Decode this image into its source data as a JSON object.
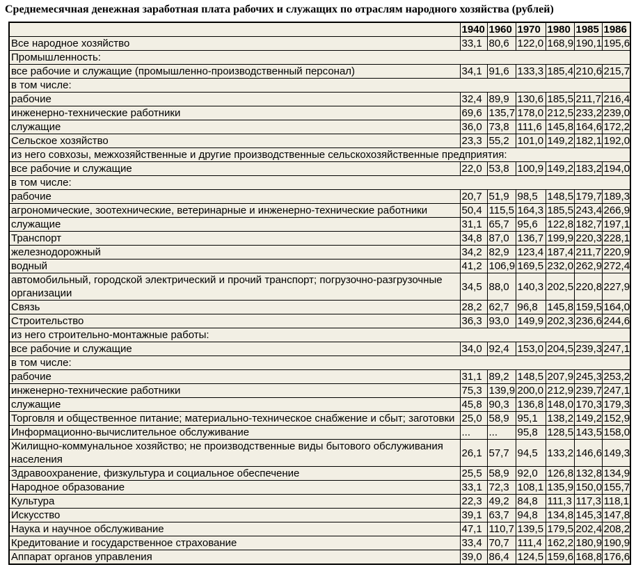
{
  "title": "Среднемесячная денежная заработная плата рабочих и служащих по отраслям народного хозяйства (рублей)",
  "colors": {
    "table_background": "#f2efe4",
    "border": "#000000",
    "text": "#000000",
    "page_background": "#ffffff"
  },
  "table": {
    "corner_label": "",
    "columns": [
      "1940",
      "1960",
      "1970",
      "1980",
      "1985",
      "1986"
    ],
    "rows": [
      {
        "label": "Все народное хозяйство",
        "values": [
          "33,1",
          "80,6",
          "122,0",
          "168,9",
          "190,1",
          "195,6"
        ]
      },
      {
        "label": "Промышленность:",
        "section": true
      },
      {
        "label": "все рабочие и служащие (промышленно-производственный персонал)",
        "values": [
          "34,1",
          "91,6",
          "133,3",
          "185,4",
          "210,6",
          "215,7"
        ]
      },
      {
        "label": "в том числе:",
        "section": true
      },
      {
        "label": "рабочие",
        "values": [
          "32,4",
          "89,9",
          "130,6",
          "185,5",
          "211,7",
          "216,4"
        ]
      },
      {
        "label": "инженерно-технические работники",
        "values": [
          "69,6",
          "135,7",
          "178,0",
          "212,5",
          "233,2",
          "239,0"
        ]
      },
      {
        "label": "служащие",
        "values": [
          "36,0",
          "73,8",
          "111,6",
          "145,8",
          "164,6",
          "172,2"
        ]
      },
      {
        "label": "Сельское хозяйство",
        "values": [
          "23,3",
          "55,2",
          "101,0",
          "149,2",
          "182,1",
          "192,0"
        ]
      },
      {
        "label": "из него совхозы, межхозяйственные и другие производственные сельскохозяйственные предприятия:",
        "section": true
      },
      {
        "label": "все рабочие и служащие",
        "values": [
          "22,0",
          "53,8",
          "100,9",
          "149,2",
          "183,2",
          "194,0"
        ]
      },
      {
        "label": "в том числе:",
        "section": true
      },
      {
        "label": "рабочие",
        "values": [
          "20,7",
          "51,9",
          "98,5",
          "148,5",
          "179,7",
          "189,3"
        ]
      },
      {
        "label": "агрономические, зоотехнические, ветеринарные и инженерно-технические работники",
        "values": [
          "50,4",
          "115,5",
          "164,3",
          "185,5",
          "243,4",
          "266,9"
        ]
      },
      {
        "label": "служащие",
        "values": [
          "31,1",
          "65,7",
          "95,6",
          "122,8",
          "182,7",
          "197,1"
        ]
      },
      {
        "label": "Транспорт",
        "values": [
          "34,8",
          "87,0",
          "136,7",
          "199,9",
          "220,3",
          "228,1"
        ]
      },
      {
        "label": "железнодорожный",
        "values": [
          "34,2",
          "82,9",
          "123,4",
          "187,4",
          "211,7",
          "220,9"
        ]
      },
      {
        "label": "водный",
        "values": [
          "41,2",
          "106,9",
          "169,5",
          "232,0",
          "262,9",
          "272,4"
        ]
      },
      {
        "label": "автомобильный, городской электрический и прочий транспорт; погрузочно-разгрузочные организации",
        "values": [
          "34,5",
          "88,0",
          "140,3",
          "202,5",
          "220,8",
          "227,9"
        ]
      },
      {
        "label": "Связь",
        "values": [
          "28,2",
          "62,7",
          "96,8",
          "145,8",
          "159,5",
          "164,0"
        ]
      },
      {
        "label": "Строительство",
        "values": [
          "36,3",
          "93,0",
          "149,9",
          "202,3",
          "236,6",
          "244,6"
        ]
      },
      {
        "label": "из него строительно-монтажные работы:",
        "section": true
      },
      {
        "label": "все рабочие и служащие",
        "values": [
          "34,0",
          "92,4",
          "153,0",
          "204,5",
          "239,3",
          "247,1"
        ]
      },
      {
        "label": "в том числе:",
        "section": true
      },
      {
        "label": "рабочие",
        "values": [
          "31,1",
          "89,2",
          "148,5",
          "207,9",
          "245,3",
          "253,2"
        ]
      },
      {
        "label": "инженерно-технические работники",
        "values": [
          "75,3",
          "139,9",
          "200,0",
          "212,9",
          "239,7",
          "247,1"
        ]
      },
      {
        "label": "служащие",
        "values": [
          "45,8",
          "90,3",
          "136,8",
          "148,0",
          "170,3",
          "179,3"
        ]
      },
      {
        "label": "Торговля и общественное питание; материально-техническое снабжение и сбыт; заготовки",
        "values": [
          "25,0",
          "58,9",
          "95,1",
          "138,2",
          "149,2",
          "152,9"
        ]
      },
      {
        "label": "Информационно-вычислительное обслуживание",
        "values": [
          "...",
          "...",
          "95,8",
          "128,5",
          "143,5",
          "158,0"
        ]
      },
      {
        "label": "Жилищно-коммунальное хозяйство; не производственные виды бытового обслуживания населения",
        "values": [
          "26,1",
          "57,7",
          "94,5",
          "133,2",
          "146,6",
          "149,3"
        ]
      },
      {
        "label": "Здравоохранение, физкультура и социальное обеспечение",
        "values": [
          "25,5",
          "58,9",
          "92,0",
          "126,8",
          "132,8",
          "134,9"
        ]
      },
      {
        "label": "Народное образование",
        "values": [
          "33,1",
          "72,3",
          "108,1",
          "135,9",
          "150,0",
          "155,7"
        ]
      },
      {
        "label": "Культура",
        "values": [
          "22,3",
          "49,2",
          "84,8",
          "111,3",
          "117,3",
          "118,1"
        ]
      },
      {
        "label": "Искусство",
        "values": [
          "39,1",
          "63,7",
          "94,8",
          "134,8",
          "145,3",
          "147,8"
        ]
      },
      {
        "label": "Наука и научное обслуживание",
        "values": [
          "47,1",
          "110,7",
          "139,5",
          "179,5",
          "202,4",
          "208,2"
        ]
      },
      {
        "label": "Кредитование и государственное страхование",
        "values": [
          "33,4",
          "70,7",
          "111,4",
          "162,2",
          "180,9",
          "190,9"
        ]
      },
      {
        "label": "Аппарат органов управления",
        "values": [
          "39,0",
          "86,4",
          "124,5",
          "159,6",
          "168,8",
          "176,6"
        ]
      }
    ]
  }
}
